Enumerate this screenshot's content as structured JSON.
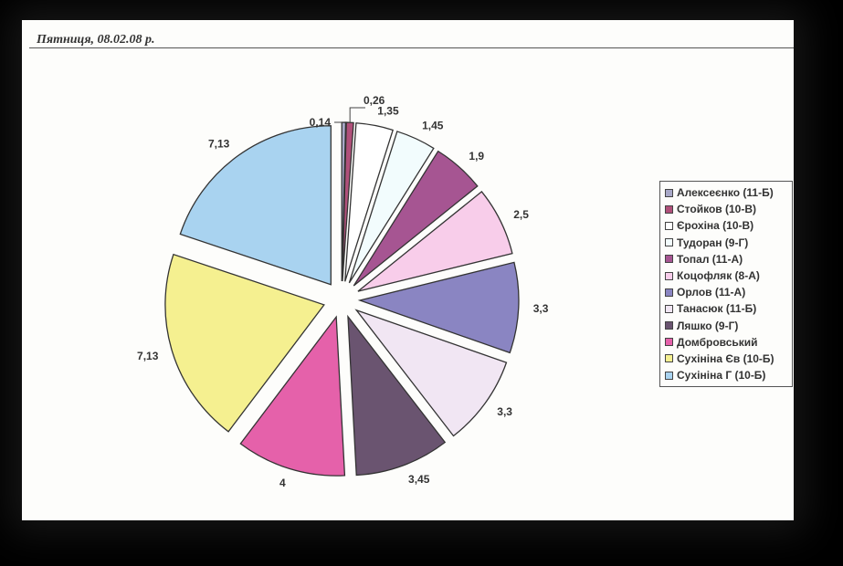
{
  "header": {
    "title": "Пятниця, 08.02.08 р."
  },
  "chart_data": {
    "type": "pie",
    "title": "",
    "legend_position": "right",
    "slices": [
      {
        "label": "Алексеєнко (11-Б)",
        "value": 0.14,
        "value_label": "0,14",
        "color": "#a8a8c8"
      },
      {
        "label": "Стойков (10-В)",
        "value": 0.26,
        "value_label": "0,26",
        "color": "#b0507a"
      },
      {
        "label": "Єрохіна (10-В)",
        "value": 1.35,
        "value_label": "1,35",
        "color": "#ffffff"
      },
      {
        "label": "Тудоран (9-Г)",
        "value": 1.45,
        "value_label": "1,45",
        "color": "#f2fcfd"
      },
      {
        "label": "Топал (11-А)",
        "value": 1.9,
        "value_label": "1,9",
        "color": "#a65592"
      },
      {
        "label": "Коцофляк (8-А)",
        "value": 2.5,
        "value_label": "2,5",
        "color": "#f8cdea"
      },
      {
        "label": "Орлов (11-А)",
        "value": 3.3,
        "value_label": "3,3",
        "color": "#8a85c2"
      },
      {
        "label": "Танасюк (11-Б)",
        "value": 3.3,
        "value_label": "3,3",
        "color": "#f1e6f3"
      },
      {
        "label": "Ляшко (9-Г)",
        "value": 3.45,
        "value_label": "3,45",
        "color": "#6a5470"
      },
      {
        "label": "Домбровський",
        "value": 4,
        "value_label": "4",
        "color": "#e561aa"
      },
      {
        "label": "Сухініна Єв (10-Б)",
        "value": 7.13,
        "value_label": "7,13",
        "color": "#f5f090"
      },
      {
        "label": "Сухініна Г (10-Б)",
        "value": 7.13,
        "value_label": "7,13",
        "color": "#a9d3f0"
      }
    ]
  }
}
